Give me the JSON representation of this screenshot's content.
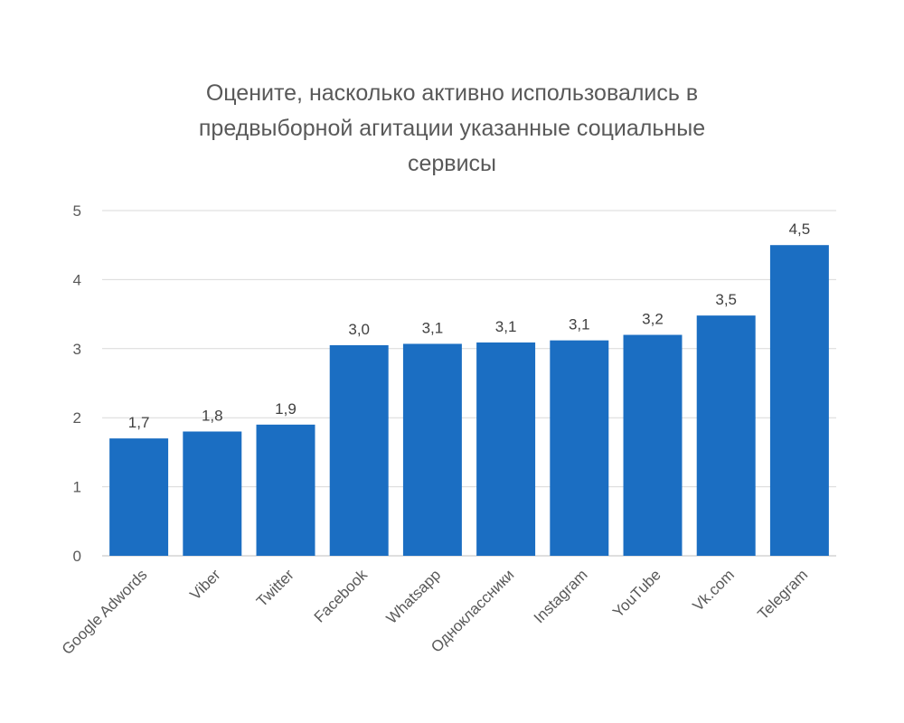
{
  "chart_data": {
    "type": "bar",
    "title_lines": [
      "Оцените, насколько активно использовались в",
      "предвыборной агитации указанные социальные",
      "сервисы"
    ],
    "categories": [
      "Google Adwords",
      "Viber",
      "Twitter",
      "Facebook",
      "Whatsapp",
      "Одноклассники",
      "Instagram",
      "YouTube",
      "Vk.com",
      "Telegram"
    ],
    "values": [
      1.7,
      1.8,
      1.9,
      3.05,
      3.07,
      3.09,
      3.12,
      3.2,
      3.48,
      4.5
    ],
    "data_labels": [
      "1,7",
      "1,8",
      "1,9",
      "3,0",
      "3,1",
      "3,1",
      "3,1",
      "3,2",
      "3,5",
      "4,5"
    ],
    "y_ticks": [
      "0",
      "1",
      "2",
      "3",
      "4",
      "5"
    ],
    "ylim": [
      0,
      5
    ],
    "grid": true,
    "legend": "none",
    "bar_color": "#1b6ec2",
    "grid_color": "#d9d9d9"
  }
}
